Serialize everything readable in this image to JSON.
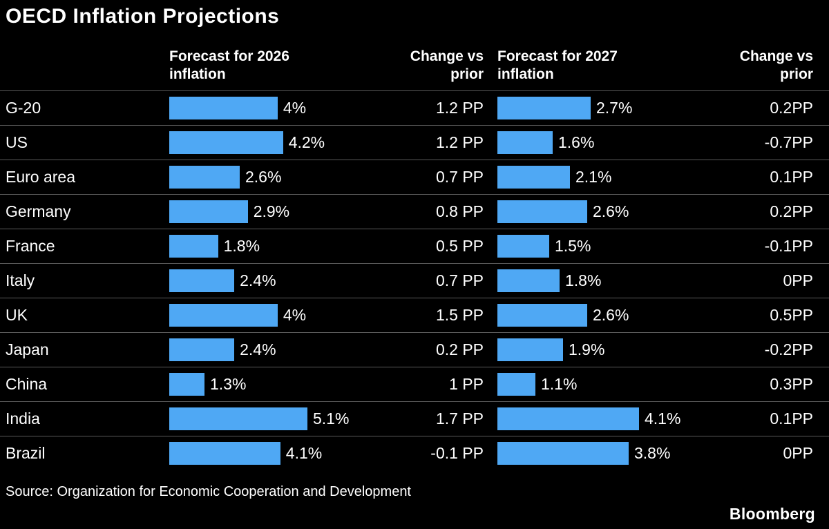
{
  "title": "OECD Inflation Projections",
  "header": {
    "forecast_2026": "Forecast for 2026 inflation",
    "change_2026": "Change vs prior",
    "forecast_2027": "Forecast for 2027 inflation",
    "change_2027": "Change vs prior"
  },
  "footer": {
    "source": "Source: Organization for Economic Cooperation and Development",
    "brand": "Bloomberg"
  },
  "colors": {
    "background": "#000000",
    "text": "#FFFFFF",
    "bar": "#4FA8F4",
    "divider": "#5C5C5C"
  },
  "chart_data": {
    "type": "bar",
    "title": "OECD Inflation Projections",
    "orientation": "horizontal",
    "columns": [
      "Forecast for 2026 inflation",
      "Change vs prior",
      "Forecast for 2027 inflation",
      "Change vs prior"
    ],
    "axis_max_2026": 5.1,
    "axis_max_2027": 4.1,
    "categories": [
      "G-20",
      "US",
      "Euro area",
      "Germany",
      "France",
      "Italy",
      "UK",
      "Japan",
      "China",
      "India",
      "Brazil"
    ],
    "rows": [
      {
        "country": "G-20",
        "forecast_2026": 4.0,
        "forecast_2026_label": "4%",
        "change_2026": 1.2,
        "change_2026_label": "1.2 PP",
        "forecast_2027": 2.7,
        "forecast_2027_label": "2.7%",
        "change_2027": 0.2,
        "change_2027_label": "0.2PP"
      },
      {
        "country": "US",
        "forecast_2026": 4.2,
        "forecast_2026_label": "4.2%",
        "change_2026": 1.2,
        "change_2026_label": "1.2 PP",
        "forecast_2027": 1.6,
        "forecast_2027_label": "1.6%",
        "change_2027": -0.7,
        "change_2027_label": "-0.7PP"
      },
      {
        "country": "Euro area",
        "forecast_2026": 2.6,
        "forecast_2026_label": "2.6%",
        "change_2026": 0.7,
        "change_2026_label": "0.7 PP",
        "forecast_2027": 2.1,
        "forecast_2027_label": "2.1%",
        "change_2027": 0.1,
        "change_2027_label": "0.1PP"
      },
      {
        "country": "Germany",
        "forecast_2026": 2.9,
        "forecast_2026_label": "2.9%",
        "change_2026": 0.8,
        "change_2026_label": "0.8 PP",
        "forecast_2027": 2.6,
        "forecast_2027_label": "2.6%",
        "change_2027": 0.2,
        "change_2027_label": "0.2PP"
      },
      {
        "country": "France",
        "forecast_2026": 1.8,
        "forecast_2026_label": "1.8%",
        "change_2026": 0.5,
        "change_2026_label": "0.5 PP",
        "forecast_2027": 1.5,
        "forecast_2027_label": "1.5%",
        "change_2027": -0.1,
        "change_2027_label": "-0.1PP"
      },
      {
        "country": "Italy",
        "forecast_2026": 2.4,
        "forecast_2026_label": "2.4%",
        "change_2026": 0.7,
        "change_2026_label": "0.7 PP",
        "forecast_2027": 1.8,
        "forecast_2027_label": "1.8%",
        "change_2027": 0,
        "change_2027_label": "0PP"
      },
      {
        "country": "UK",
        "forecast_2026": 4.0,
        "forecast_2026_label": "4%",
        "change_2026": 1.5,
        "change_2026_label": "1.5 PP",
        "forecast_2027": 2.6,
        "forecast_2027_label": "2.6%",
        "change_2027": 0.5,
        "change_2027_label": "0.5PP"
      },
      {
        "country": "Japan",
        "forecast_2026": 2.4,
        "forecast_2026_label": "2.4%",
        "change_2026": 0.2,
        "change_2026_label": "0.2 PP",
        "forecast_2027": 1.9,
        "forecast_2027_label": "1.9%",
        "change_2027": -0.2,
        "change_2027_label": "-0.2PP"
      },
      {
        "country": "China",
        "forecast_2026": 1.3,
        "forecast_2026_label": "1.3%",
        "change_2026": 1,
        "change_2026_label": "1 PP",
        "forecast_2027": 1.1,
        "forecast_2027_label": "1.1%",
        "change_2027": 0.3,
        "change_2027_label": "0.3PP"
      },
      {
        "country": "India",
        "forecast_2026": 5.1,
        "forecast_2026_label": "5.1%",
        "change_2026": 1.7,
        "change_2026_label": "1.7 PP",
        "forecast_2027": 4.1,
        "forecast_2027_label": "4.1%",
        "change_2027": 0.1,
        "change_2027_label": "0.1PP"
      },
      {
        "country": "Brazil",
        "forecast_2026": 4.1,
        "forecast_2026_label": "4.1%",
        "change_2026": -0.1,
        "change_2026_label": "-0.1 PP",
        "forecast_2027": 3.8,
        "forecast_2027_label": "3.8%",
        "change_2027": 0,
        "change_2027_label": "0PP"
      }
    ]
  }
}
